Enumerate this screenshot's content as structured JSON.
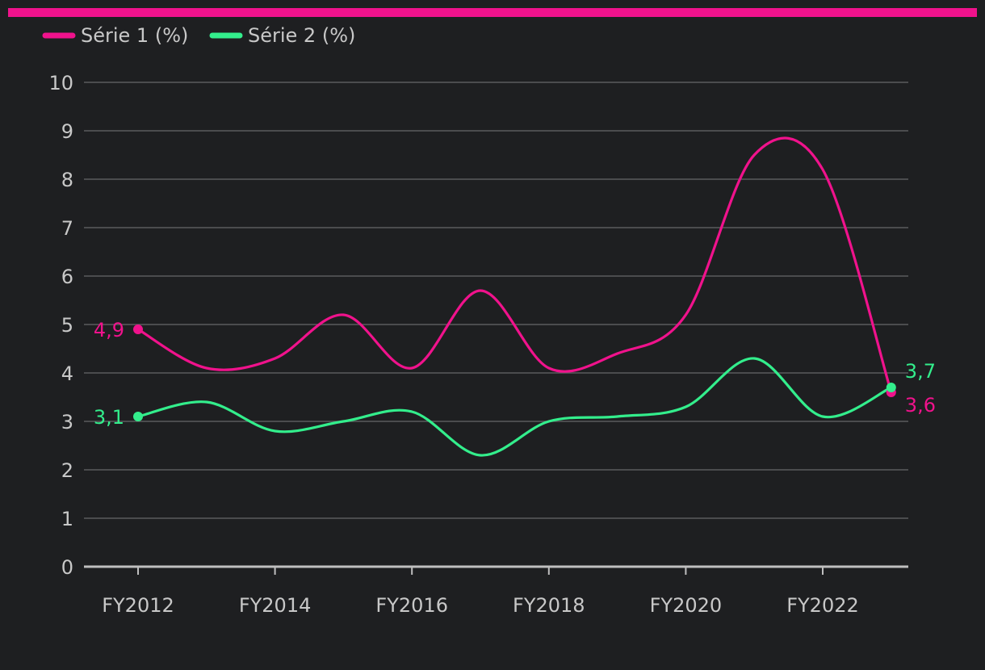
{
  "colors": {
    "background": "#1e1f21",
    "accent_bar": "#f0128c",
    "series_1": "#f0128c",
    "series_2": "#33ee8c",
    "grid": "#5a5b5e",
    "text": "#c8c8c8"
  },
  "chart_data": {
    "type": "line",
    "curve": "smooth",
    "x": [
      "FY2012",
      "FY2013",
      "FY2014",
      "FY2015",
      "FY2016",
      "FY2017",
      "FY2018",
      "FY2019",
      "FY2020",
      "FY2021",
      "FY2022",
      "FY2023"
    ],
    "x_tick_labels": [
      "FY2012",
      "FY2014",
      "FY2016",
      "FY2018",
      "FY2020",
      "FY2022"
    ],
    "y_ticks": [
      "0",
      "1",
      "2",
      "3",
      "4",
      "5",
      "6",
      "7",
      "8",
      "9",
      "10"
    ],
    "ylim": [
      0,
      10
    ],
    "grid": true,
    "legend_position": "top-left",
    "series": [
      {
        "name": "Série 1 (%)",
        "values": [
          4.9,
          4.1,
          4.3,
          5.2,
          4.1,
          5.7,
          4.1,
          4.4,
          5.2,
          8.5,
          8.2,
          3.6
        ],
        "start_label": "4,9",
        "end_label": "3,6"
      },
      {
        "name": "Série 2 (%)",
        "values": [
          3.1,
          3.4,
          2.8,
          3.0,
          3.2,
          2.3,
          3.0,
          3.1,
          3.3,
          4.3,
          3.1,
          3.7
        ],
        "start_label": "3,1",
        "end_label": "3,7"
      }
    ]
  }
}
